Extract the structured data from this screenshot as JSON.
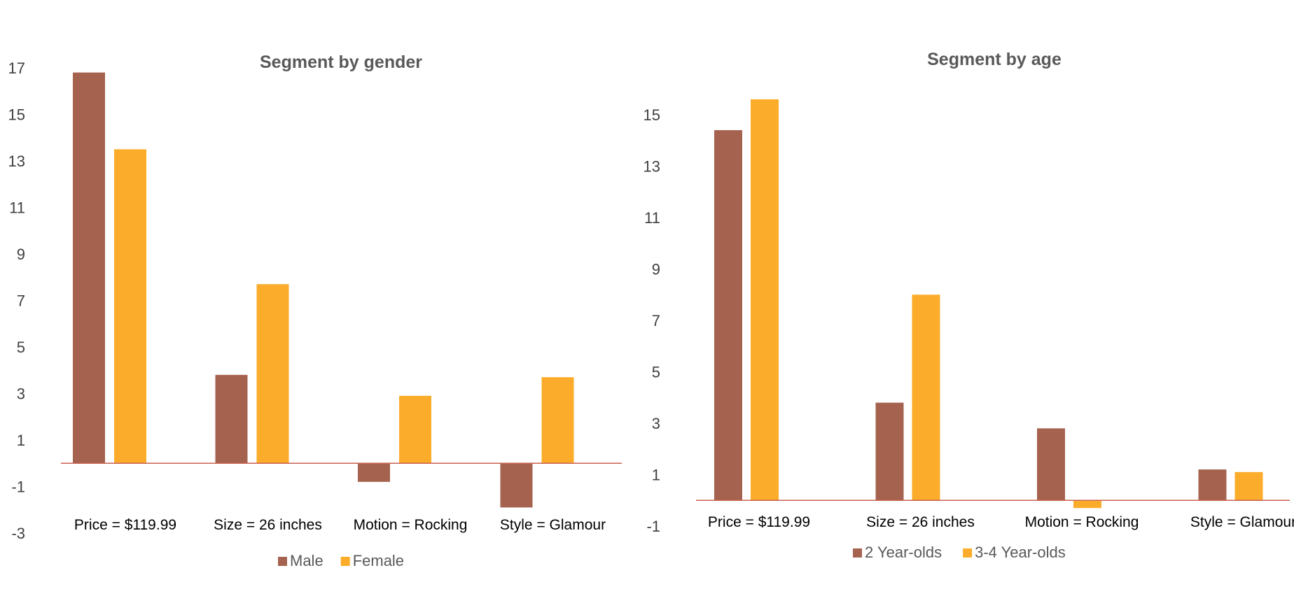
{
  "chart_data": [
    {
      "type": "bar",
      "title": "Segment by gender",
      "xlabel": "",
      "ylabel": "",
      "categories": [
        "Price = $119.99",
        "Size = 26 inches",
        "Motion = Rocking",
        "Style = Glamour"
      ],
      "series": [
        {
          "name": "Male",
          "color": "#A5634F",
          "values": [
            16.8,
            3.8,
            -0.8,
            -1.9
          ]
        },
        {
          "name": "Female",
          "color": "#FCAC2B",
          "values": [
            13.5,
            7.7,
            2.9,
            3.7
          ]
        }
      ],
      "ylim": [
        -3,
        17
      ],
      "yticks": [
        -3,
        -1,
        1,
        3,
        5,
        7,
        9,
        11,
        13,
        15,
        17
      ],
      "grid": false,
      "legend": "bottom"
    },
    {
      "type": "bar",
      "title": "Segment by age",
      "xlabel": "",
      "ylabel": "",
      "categories": [
        "Price = $119.99",
        "Size = 26 inches",
        "Motion = Rocking",
        "Style = Glamour"
      ],
      "series": [
        {
          "name": "2 Year-olds",
          "color": "#A5634F",
          "values": [
            14.4,
            3.8,
            2.8,
            1.2
          ]
        },
        {
          "name": "3-4 Year-olds",
          "color": "#FCAC2B",
          "values": [
            15.6,
            8.0,
            -0.3,
            1.1
          ]
        }
      ],
      "ylim": [
        -1,
        15
      ],
      "yticks": [
        -1,
        1,
        3,
        5,
        7,
        9,
        11,
        13,
        15
      ],
      "grid": false,
      "legend": "bottom"
    }
  ]
}
